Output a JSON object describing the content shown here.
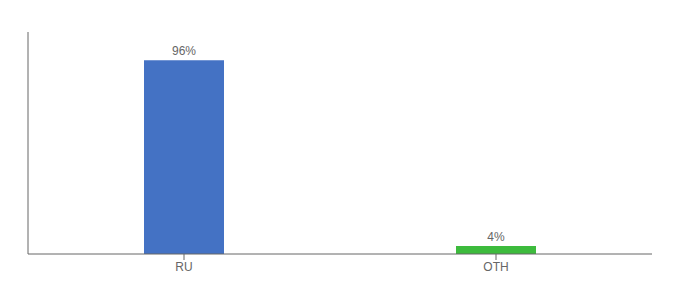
{
  "chart_data": {
    "type": "bar",
    "categories": [
      "RU",
      "OTH"
    ],
    "values": [
      96,
      4
    ],
    "value_labels": [
      "96%",
      "4%"
    ],
    "colors": [
      "#4472c4",
      "#3dbb3d"
    ],
    "ylim": [
      0,
      110
    ],
    "data_labels": true,
    "tick_labels": "x",
    "grid": false
  }
}
